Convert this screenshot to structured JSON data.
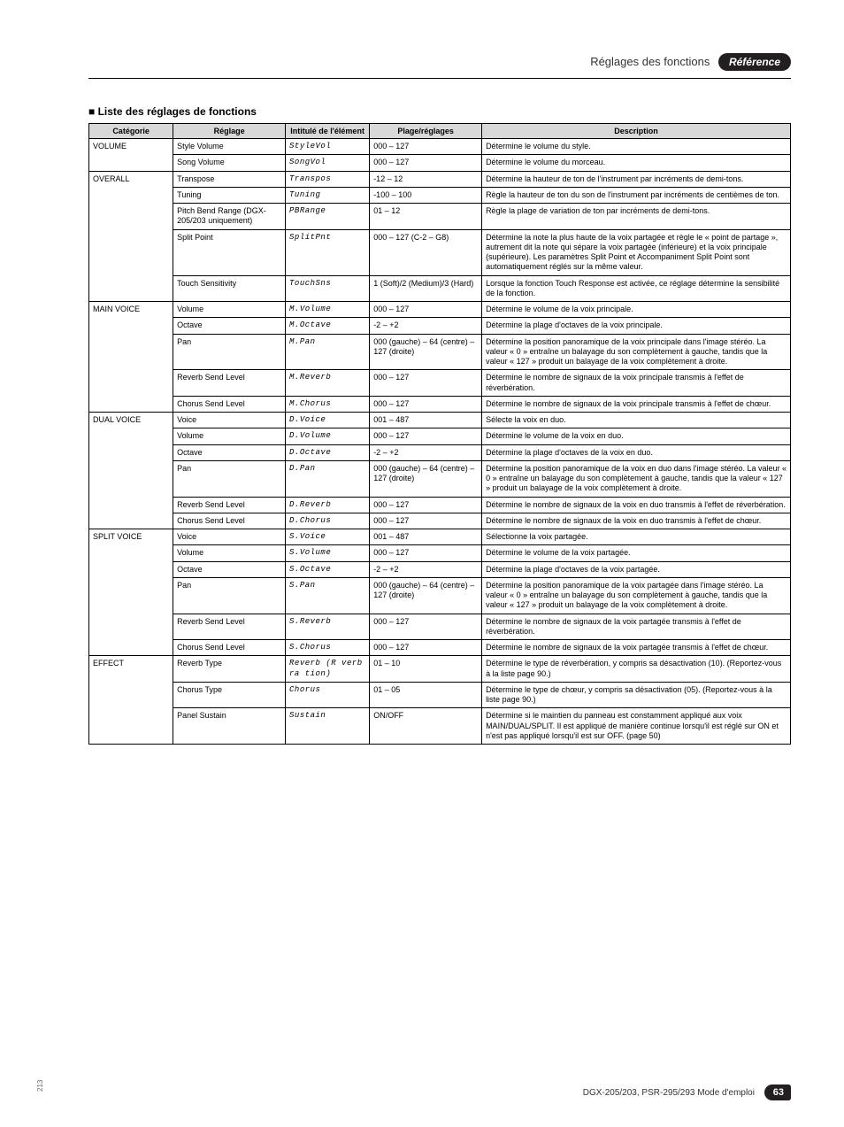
{
  "header": {
    "title": "Réglages des fonctions",
    "reference_label": "Référence"
  },
  "section_title": "Liste des réglages de fonctions",
  "columns": {
    "category": "Catégorie",
    "setting": "Réglage",
    "item": "Intitulé de l'élément",
    "range": "Plage/réglages",
    "description": "Description"
  },
  "categories": [
    {
      "name": "VOLUME",
      "rows": [
        {
          "setting": "Style Volume",
          "item": "StyleVol",
          "range": "000 – 127",
          "desc": "Détermine le volume du style."
        },
        {
          "setting": "Song Volume",
          "item": "SongVol",
          "range": "000 – 127",
          "desc": "Détermine le volume du morceau."
        }
      ]
    },
    {
      "name": "OVERALL",
      "rows": [
        {
          "setting": "Transpose",
          "item": "Transpos",
          "range": "-12 – 12",
          "desc": "Détermine la hauteur de ton de l'instrument par incréments de demi-tons."
        },
        {
          "setting": "Tuning",
          "item": "Tuning",
          "range": "-100 – 100",
          "desc": "Règle la hauteur de ton du son de l'instrument par incréments de centièmes de ton."
        },
        {
          "setting": "Pitch Bend Range (DGX-205/203 uniquement)",
          "item": "PBRange",
          "range": "01 – 12",
          "desc": "Règle la plage de variation de ton par incréments de demi-tons."
        },
        {
          "setting": "Split Point",
          "item": "SplitPnt",
          "range": "000 – 127 (C-2 – G8)",
          "desc": "Détermine la note la plus haute de la voix partagée et règle le « point de partage », autrement dit la note qui sépare la voix partagée (inférieure) et la voix principale (supérieure). Les paramètres Split Point et Accompaniment Split Point sont automatiquement réglés sur la même valeur."
        },
        {
          "setting": "Touch Sensitivity",
          "item": "TouchSns",
          "range": "1 (Soft)/2 (Medium)/3 (Hard)",
          "desc": "Lorsque la fonction Touch Response est activée, ce réglage détermine la sensibilité de la fonction."
        }
      ]
    },
    {
      "name": "MAIN VOICE",
      "rows": [
        {
          "setting": "Volume",
          "item": "M.Volume",
          "range": "000 – 127",
          "desc": "Détermine le volume de la voix principale."
        },
        {
          "setting": "Octave",
          "item": "M.Octave",
          "range": "-2 – +2",
          "desc": "Détermine la plage d'octaves de la voix principale."
        },
        {
          "setting": "Pan",
          "item": "M.Pan",
          "range": "000 (gauche) – 64 (centre) – 127 (droite)",
          "desc": "Détermine la position panoramique de la voix principale dans l'image stéréo. La valeur « 0 » entraîne un balayage du son complètement à gauche, tandis que la valeur « 127 » produit un balayage de la voix complètement à droite."
        },
        {
          "setting": "Reverb Send Level",
          "item": "M.Reverb",
          "range": "000 – 127",
          "desc": "Détermine le nombre de signaux de la voix principale transmis à l'effet de réverbération."
        },
        {
          "setting": "Chorus Send Level",
          "item": "M.Chorus",
          "range": "000 – 127",
          "desc": "Détermine le nombre de signaux de la voix principale transmis à l'effet de chœur."
        }
      ]
    },
    {
      "name": "DUAL VOICE",
      "rows": [
        {
          "setting": "Voice",
          "item": "D.Voice",
          "range": "001 – 487",
          "desc": "Sélecte la voix en duo."
        },
        {
          "setting": "Volume",
          "item": "D.Volume",
          "range": "000 – 127",
          "desc": "Détermine le volume de la voix en duo."
        },
        {
          "setting": "Octave",
          "item": "D.Octave",
          "range": "-2 – +2",
          "desc": "Détermine la plage d'octaves de la voix en duo."
        },
        {
          "setting": "Pan",
          "item": "D.Pan",
          "range": "000 (gauche) – 64 (centre) – 127 (droite)",
          "desc": "Détermine la position panoramique de la voix en duo dans l'image stéréo. La valeur « 0 » entraîne un balayage du son complètement à gauche, tandis que la valeur « 127 » produit un balayage de la voix complètement à droite."
        },
        {
          "setting": "Reverb Send Level",
          "item": "D.Reverb",
          "range": "000 – 127",
          "desc": "Détermine le nombre de signaux de la voix en duo transmis à l'effet de réverbération."
        },
        {
          "setting": "Chorus Send Level",
          "item": "D.Chorus",
          "range": "000 – 127",
          "desc": "Détermine le nombre de signaux de la voix en duo transmis à l'effet de chœur."
        }
      ]
    },
    {
      "name": "SPLIT VOICE",
      "rows": [
        {
          "setting": "Voice",
          "item": "S.Voice",
          "range": "001 – 487",
          "desc": "Sélectionne la voix partagée."
        },
        {
          "setting": "Volume",
          "item": "S.Volume",
          "range": "000 – 127",
          "desc": "Détermine le volume de la voix partagée."
        },
        {
          "setting": "Octave",
          "item": "S.Octave",
          "range": "-2 – +2",
          "desc": "Détermine la plage d'octaves de la voix partagée."
        },
        {
          "setting": "Pan",
          "item": "S.Pan",
          "range": "000 (gauche) – 64 (centre) – 127 (droite)",
          "desc": "Détermine la position panoramique de la voix partagée dans l'image stéréo. La valeur « 0 » entraîne un balayage du son complètement à gauche, tandis que la valeur « 127 » produit un balayage de la voix complètement à droite."
        },
        {
          "setting": "Reverb Send Level",
          "item": "S.Reverb",
          "range": "000 – 127",
          "desc": "Détermine le nombre de signaux de la voix partagée transmis à l'effet de réverbération."
        },
        {
          "setting": "Chorus Send Level",
          "item": "S.Chorus",
          "range": "000 – 127",
          "desc": "Détermine le nombre de signaux de la voix partagée transmis à l'effet de chœur."
        }
      ]
    },
    {
      "name": "EFFECT",
      "rows": [
        {
          "setting": "Reverb Type",
          "item": "Reverb (R verb ra tion)",
          "range": "01 – 10",
          "desc": "Détermine le type de réverbération, y compris sa désactivation (10). (Reportez-vous à la liste page 90.)"
        },
        {
          "setting": "Chorus Type",
          "item": "Chorus",
          "range": "01 – 05",
          "desc": "Détermine le type de chœur, y compris sa désactivation (05). (Reportez-vous à la liste page 90.)"
        },
        {
          "setting": "Panel Sustain",
          "item": "Sustain",
          "range": "ON/OFF",
          "desc": "Détermine si le maintien du panneau est constamment appliqué aux voix MAIN/DUAL/SPLIT. Il est appliqué de manière continue lorsqu'il est réglé sur ON et n'est pas appliqué lorsqu'il est sur OFF. (page 50)"
        }
      ]
    }
  ],
  "footer": {
    "text": "DGX-205/203, PSR-295/293 Mode d'emploi",
    "page_number": "63",
    "side_number": "213"
  }
}
